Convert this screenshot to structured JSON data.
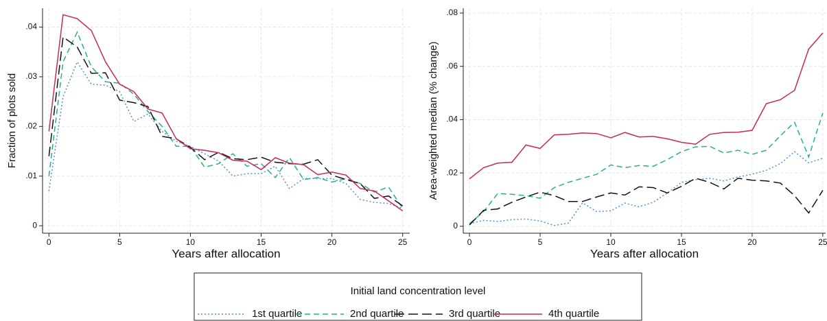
{
  "legend": {
    "title": "Initial land concentration level"
  },
  "chart_data": [
    {
      "type": "line",
      "x_label": "Years after allocation",
      "y_label": "Fraction of plots sold",
      "x": [
        0,
        1,
        2,
        3,
        4,
        5,
        6,
        7,
        8,
        9,
        10,
        11,
        12,
        13,
        14,
        15,
        16,
        17,
        18,
        19,
        20,
        21,
        22,
        23,
        24,
        25
      ],
      "xlim": [
        -0.45,
        25.5
      ],
      "ylim": [
        -0.0015,
        0.0438
      ],
      "xticks": [
        0,
        5,
        10,
        15,
        20,
        25
      ],
      "yticks": [
        0,
        {
          "value": 0.01,
          "label": ".01"
        },
        {
          "value": 0.02,
          "label": ".02"
        },
        {
          "value": 0.03,
          "label": ".03"
        },
        {
          "value": 0.04,
          "label": ".04"
        }
      ],
      "grid": true,
      "series": [
        {
          "name": "1st quartile",
          "color": "#4a8fdc",
          "dash": "dotted",
          "values": [
            0.007,
            0.026,
            0.033,
            0.0285,
            0.0283,
            0.027,
            0.021,
            0.0225,
            0.019,
            0.017,
            0.016,
            0.0145,
            0.013,
            0.01,
            0.0105,
            0.0105,
            0.012,
            0.0075,
            0.0095,
            0.0095,
            0.0095,
            0.0085,
            0.0053,
            0.0047,
            0.0045,
            0.0035
          ]
        },
        {
          "name": "2nd quartile",
          "color": "#25b08a",
          "dash": "dashed",
          "values": [
            0.01,
            0.033,
            0.039,
            0.032,
            0.029,
            0.0287,
            0.0265,
            0.023,
            0.02,
            0.016,
            0.016,
            0.0118,
            0.0125,
            0.0145,
            0.012,
            0.0125,
            0.0097,
            0.0137,
            0.0093,
            0.0097,
            0.0088,
            0.0095,
            0.0085,
            0.0068,
            0.0078,
            0.0035
          ]
        },
        {
          "name": "3rd quartile",
          "color": "#111111",
          "dash": "longdash",
          "values": [
            0.014,
            0.038,
            0.036,
            0.0307,
            0.0308,
            0.0253,
            0.0248,
            0.024,
            0.018,
            0.0175,
            0.0158,
            0.0133,
            0.0148,
            0.0135,
            0.0133,
            0.0138,
            0.0128,
            0.0125,
            0.0124,
            0.0133,
            0.0102,
            0.0093,
            0.0085,
            0.0055,
            0.006,
            0.004
          ]
        },
        {
          "name": "4th quartile",
          "color": "#c8265a",
          "dash": "solid",
          "values": [
            0.019,
            0.0425,
            0.0417,
            0.0393,
            0.033,
            0.0285,
            0.027,
            0.0235,
            0.0227,
            0.0175,
            0.0155,
            0.0152,
            0.0147,
            0.0132,
            0.013,
            0.0113,
            0.0137,
            0.0126,
            0.0123,
            0.0103,
            0.0108,
            0.0102,
            0.0075,
            0.007,
            0.005,
            0.003
          ]
        }
      ]
    },
    {
      "type": "line",
      "x_label": "Years after allocation",
      "y_label": "Area-weighted median (% change)",
      "x": [
        0,
        1,
        2,
        3,
        4,
        5,
        6,
        7,
        8,
        9,
        10,
        11,
        12,
        13,
        14,
        15,
        16,
        17,
        18,
        19,
        20,
        21,
        22,
        23,
        24,
        25
      ],
      "xlim": [
        -0.44,
        25.2
      ],
      "ylim": [
        -0.0026,
        0.0818
      ],
      "xticks": [
        0,
        5,
        10,
        15,
        20,
        25
      ],
      "yticks": [
        0,
        {
          "value": 0.02,
          "label": ".02"
        },
        {
          "value": 0.04,
          "label": ".04"
        },
        {
          "value": 0.06,
          "label": ".06"
        },
        {
          "value": 0.08,
          "label": ".08"
        }
      ],
      "grid": true,
      "series": [
        {
          "name": "1st quartile",
          "color": "#4a8fdc",
          "dash": "dotted",
          "values": [
            0.001,
            0.0022,
            0.0018,
            0.0025,
            0.0027,
            0.002,
            0.0003,
            0.0012,
            0.0088,
            0.0055,
            0.0058,
            0.0087,
            0.0073,
            0.009,
            0.0125,
            0.0165,
            0.0175,
            0.018,
            0.017,
            0.0185,
            0.0195,
            0.021,
            0.0235,
            0.028,
            0.0238,
            0.0255
          ]
        },
        {
          "name": "2nd quartile",
          "color": "#25b08a",
          "dash": "dashed",
          "values": [
            0.001,
            0.0055,
            0.0123,
            0.012,
            0.0115,
            0.0105,
            0.0145,
            0.0165,
            0.018,
            0.0195,
            0.023,
            0.022,
            0.0228,
            0.0225,
            0.025,
            0.028,
            0.0298,
            0.03,
            0.0275,
            0.0285,
            0.027,
            0.0285,
            0.034,
            0.039,
            0.026,
            0.0425
          ]
        },
        {
          "name": "3rd quartile",
          "color": "#111111",
          "dash": "longdash",
          "values": [
            0.0005,
            0.006,
            0.0065,
            0.009,
            0.011,
            0.0128,
            0.0115,
            0.0093,
            0.0093,
            0.011,
            0.0125,
            0.0117,
            0.0148,
            0.0145,
            0.0125,
            0.015,
            0.018,
            0.0165,
            0.014,
            0.018,
            0.0173,
            0.017,
            0.0162,
            0.0115,
            0.005,
            0.0135
          ]
        },
        {
          "name": "4th quartile",
          "color": "#c8265a",
          "dash": "solid",
          "values": [
            0.0178,
            0.022,
            0.0237,
            0.024,
            0.0305,
            0.0292,
            0.0343,
            0.0345,
            0.035,
            0.0348,
            0.0332,
            0.0352,
            0.0335,
            0.0337,
            0.0328,
            0.0315,
            0.0308,
            0.0345,
            0.0352,
            0.0353,
            0.036,
            0.046,
            0.0475,
            0.051,
            0.0665,
            0.0725
          ]
        }
      ]
    }
  ]
}
